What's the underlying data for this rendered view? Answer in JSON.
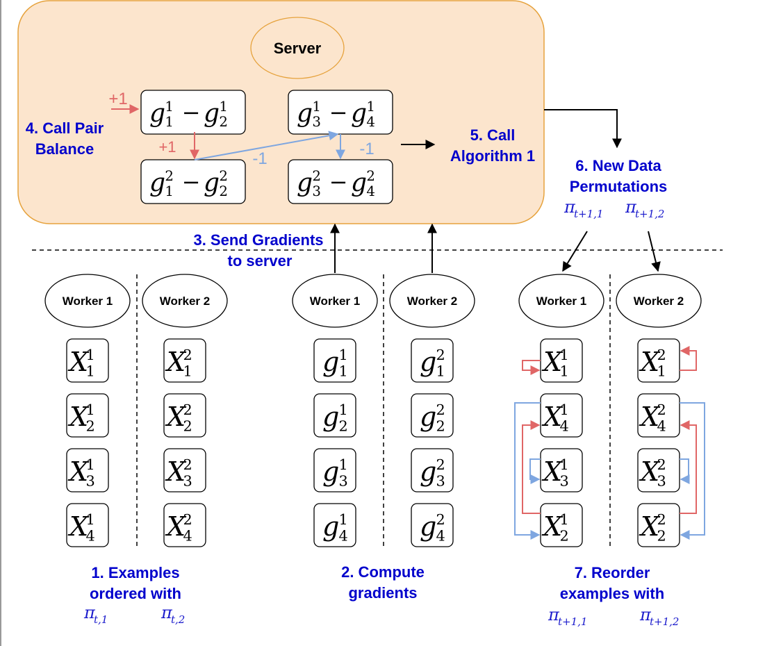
{
  "server": {
    "title": "Server",
    "pair_balance": [
      "4. Call Pair",
      "Balance"
    ],
    "algorithm": [
      "5. Call",
      "Algorithm 1"
    ],
    "pair_terms": [
      {
        "a_sup": "1",
        "a_sub": "1",
        "b_sup": "1",
        "b_sub": "2"
      },
      {
        "a_sup": "1",
        "a_sub": "3",
        "b_sup": "1",
        "b_sub": "4"
      },
      {
        "a_sup": "2",
        "a_sub": "1",
        "b_sup": "2",
        "b_sub": "2"
      },
      {
        "a_sup": "2",
        "a_sub": "3",
        "b_sup": "2",
        "b_sub": "4"
      }
    ],
    "signs": {
      "plus_top": "+1",
      "plus_mid": "+1",
      "minus_diag": "-1",
      "minus_right": "-1"
    }
  },
  "steps": {
    "send": [
      "3. Send Gradients",
      "to server"
    ],
    "new_perm": [
      "6. New Data",
      "Permutations"
    ],
    "examples": [
      "1. Examples",
      "ordered with"
    ],
    "compute": [
      "2. Compute",
      "gradients"
    ],
    "reorder": [
      "7. Reorder",
      "examples with"
    ]
  },
  "perms": {
    "new_1": {
      "sub": "t+1,1"
    },
    "new_2": {
      "sub": "t+1,2"
    },
    "ex_1": {
      "sub": "t,1"
    },
    "ex_2": {
      "sub": "t,2"
    },
    "re_1": {
      "sub": "t+1,1"
    },
    "re_2": {
      "sub": "t+1,2"
    }
  },
  "workers": {
    "w1": "Worker 1",
    "w2": "Worker 2"
  },
  "columns": {
    "examples_w1": [
      {
        "sup": "1",
        "sub": "1"
      },
      {
        "sup": "1",
        "sub": "2"
      },
      {
        "sup": "1",
        "sub": "3"
      },
      {
        "sup": "1",
        "sub": "4"
      }
    ],
    "examples_w2": [
      {
        "sup": "2",
        "sub": "1"
      },
      {
        "sup": "2",
        "sub": "2"
      },
      {
        "sup": "2",
        "sub": "3"
      },
      {
        "sup": "2",
        "sub": "4"
      }
    ],
    "grads_w1": [
      {
        "sup": "1",
        "sub": "1"
      },
      {
        "sup": "1",
        "sub": "2"
      },
      {
        "sup": "1",
        "sub": "3"
      },
      {
        "sup": "1",
        "sub": "4"
      }
    ],
    "grads_w2": [
      {
        "sup": "2",
        "sub": "1"
      },
      {
        "sup": "2",
        "sub": "2"
      },
      {
        "sup": "2",
        "sub": "3"
      },
      {
        "sup": "2",
        "sub": "4"
      }
    ],
    "reorder_w1": [
      {
        "sup": "1",
        "sub": "1"
      },
      {
        "sup": "1",
        "sub": "4"
      },
      {
        "sup": "1",
        "sub": "3"
      },
      {
        "sup": "1",
        "sub": "2"
      }
    ],
    "reorder_w2": [
      {
        "sup": "2",
        "sub": "1"
      },
      {
        "sup": "2",
        "sub": "4"
      },
      {
        "sup": "2",
        "sub": "3"
      },
      {
        "sup": "2",
        "sub": "2"
      }
    ]
  },
  "symbols": {
    "X": "X",
    "g": "g",
    "minus": "−",
    "pi": "π"
  },
  "colors": {
    "red": "#e06666",
    "blue": "#7ea6e0",
    "server_fill": "#fce5cd",
    "server_stroke": "#e6a23c",
    "text_blue": "#0000cc"
  }
}
